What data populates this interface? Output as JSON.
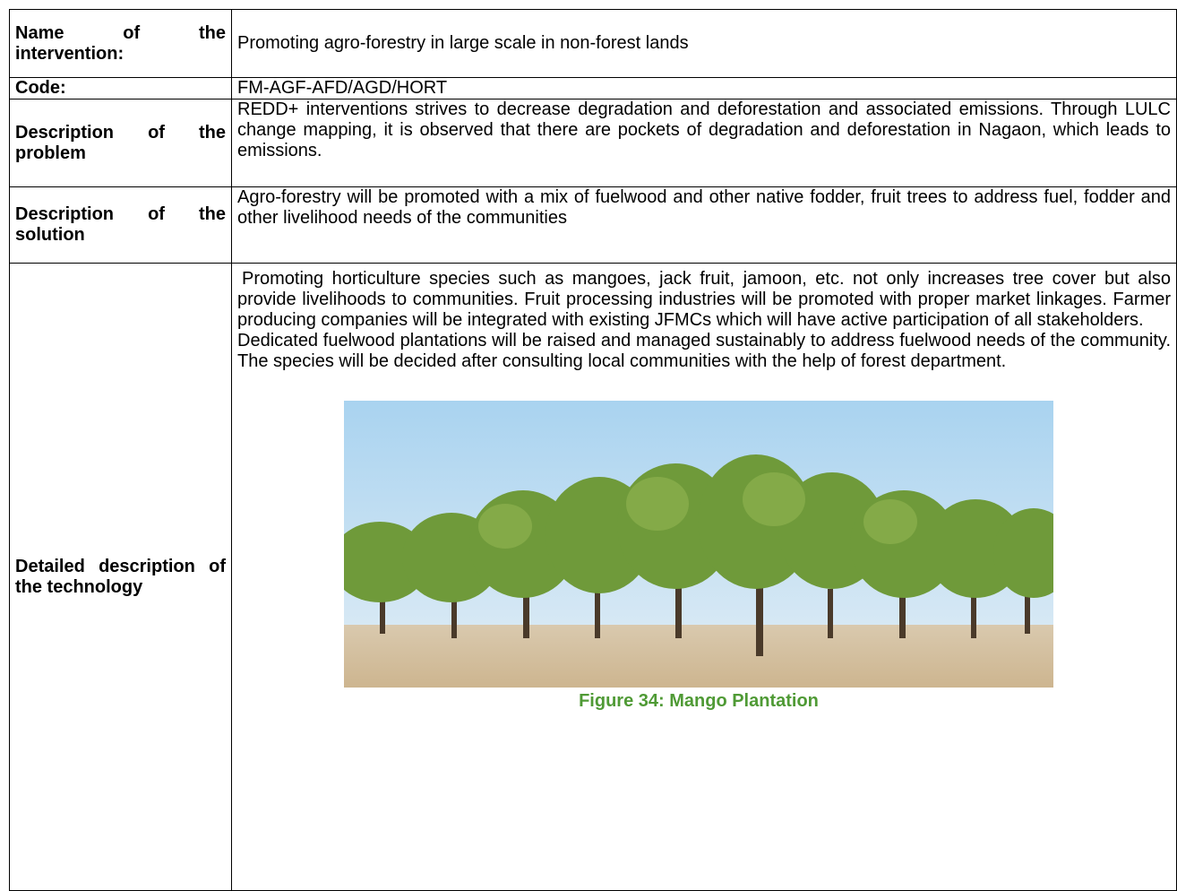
{
  "table": {
    "rows": [
      {
        "label": "Name of the intervention:",
        "value": "Promoting agro-forestry in large scale in non-forest lands"
      },
      {
        "label": "Code:",
        "value": "FM-AGF-AFD/AGD/HORT"
      },
      {
        "label": "Description of the problem",
        "value": "REDD+ interventions strives to decrease degradation and deforestation and associated emissions. Through LULC change mapping, it is observed that there are pockets of degradation and deforestation in Nagaon, which leads to emissions."
      },
      {
        "label": "Description of the solution",
        "value": "Agro-forestry will be promoted with a mix of fuelwood and other native fodder, fruit trees to address fuel, fodder and other livelihood needs of the communities"
      },
      {
        "label": "Detailed description of the technology",
        "paragraphs": [
          "Promoting horticulture species such as mangoes, jack fruit, jamoon, etc. not only increases tree cover but also provide livelihoods to communities. Fruit processing industries will be promoted with proper market linkages. Farmer producing companies will be integrated with existing JFMCs which will have active participation of all stakeholders.",
          "Dedicated fuelwood plantations will be raised and managed sustainably to address fuelwood needs of the community. The species will be decided after consulting local communities with the help of forest department."
        ],
        "figure_caption": "Figure 34: Mango Plantation"
      }
    ]
  }
}
